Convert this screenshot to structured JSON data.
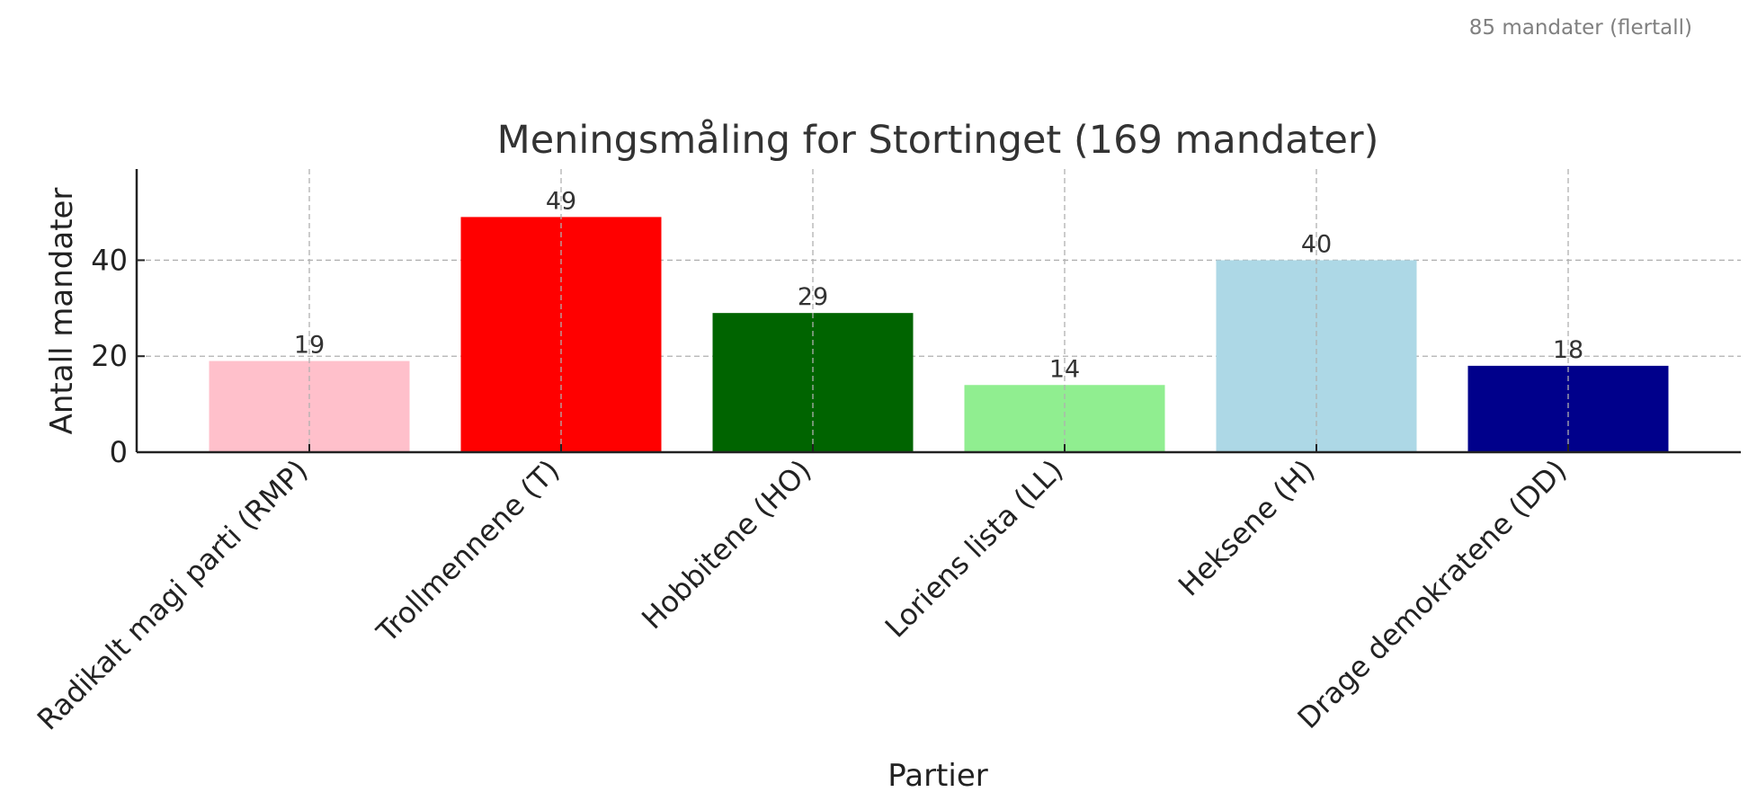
{
  "chart_data": {
    "type": "bar",
    "title": "Meningsmåling for Stortinget (169 mandater)",
    "xlabel": "Partier",
    "ylabel": "Antall mandater",
    "categories": [
      "Radikalt magi parti (RMP)",
      "Trollmennene (T)",
      "Hobbitene (HO)",
      "Loriens lista (LL)",
      "Heksene (H)",
      "Drage demokratene (DD)"
    ],
    "values": [
      19,
      49,
      29,
      14,
      40,
      18
    ],
    "colors": [
      "#ffc0cb",
      "#ff0000",
      "#006400",
      "#90ee90",
      "#add8e6",
      "#00008b"
    ],
    "ylim": [
      0,
      59
    ],
    "yticks": [
      0,
      20,
      40
    ],
    "grid": true,
    "annotation": "85 mandater (flertall)"
  }
}
